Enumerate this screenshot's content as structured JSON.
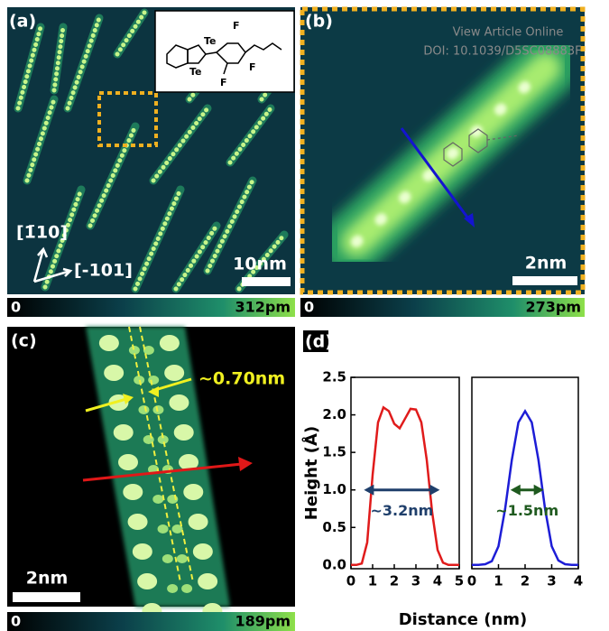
{
  "watermark": {
    "line1": "View Article Online",
    "line2": "DOI: 10.1039/D5SC08883F"
  },
  "panel_a": {
    "label": "(a)",
    "direction_1": "[1̄10]",
    "direction_2": "[-101]",
    "scale_bar": "10nm",
    "colorbar_min": "0",
    "colorbar_max": "312pm",
    "inset_labels": [
      "Te",
      "Te",
      "F",
      "F",
      "F"
    ]
  },
  "panel_b": {
    "label": "(b)",
    "scale_bar": "2nm",
    "colorbar_min": "0",
    "colorbar_max": "273pm"
  },
  "panel_c": {
    "label": "(c)",
    "spacing": "~0.70nm",
    "scale_bar": "2nm",
    "colorbar_min": "0",
    "colorbar_max": "189pm"
  },
  "panel_d": {
    "label": "(d)"
  },
  "chart_data": [
    {
      "type": "line",
      "x_label": "Distance (nm)",
      "y_label": "Height (Å)",
      "x": [
        0,
        0.25,
        0.5,
        0.75,
        1,
        1.25,
        1.5,
        1.75,
        2,
        2.25,
        2.5,
        2.75,
        3,
        3.25,
        3.5,
        3.75,
        4,
        4.25,
        4.5,
        4.75,
        5
      ],
      "series": [
        {
          "color": "#e01b1b",
          "values": [
            0,
            0,
            0.02,
            0.3,
            1.2,
            1.9,
            2.1,
            2.05,
            1.88,
            1.82,
            1.95,
            2.08,
            2.07,
            1.9,
            1.4,
            0.7,
            0.2,
            0.03,
            0,
            0,
            0
          ]
        }
      ],
      "xlim": [
        0,
        5
      ],
      "xticks": [
        0,
        1,
        2,
        3,
        4,
        5
      ],
      "ylim": [
        -0.05,
        2.5
      ],
      "yticks": [
        {
          "value": 0,
          "label": "0.0"
        },
        0.5,
        {
          "value": 1,
          "label": "1.0"
        },
        1.5,
        {
          "value": 2,
          "label": "2.0"
        },
        2.5
      ],
      "annotation": {
        "text": "~3.2nm",
        "color": "#1f3f6b"
      }
    },
    {
      "type": "line",
      "x": [
        0,
        0.25,
        0.5,
        0.75,
        1,
        1.25,
        1.5,
        1.75,
        2,
        2.25,
        2.5,
        2.75,
        3,
        3.25,
        3.5,
        3.75,
        4
      ],
      "series": [
        {
          "color": "#1d1dd6",
          "values": [
            0,
            0,
            0.01,
            0.05,
            0.25,
            0.75,
            1.4,
            1.9,
            2.05,
            1.9,
            1.4,
            0.75,
            0.25,
            0.06,
            0.01,
            0,
            0
          ]
        }
      ],
      "xlim": [
        0,
        4
      ],
      "xticks": [
        0,
        1,
        2,
        3,
        4
      ],
      "ylim": [
        -0.05,
        2.5
      ],
      "annotation": {
        "text": "~1.5nm",
        "color": "#1f5a1f"
      }
    }
  ]
}
